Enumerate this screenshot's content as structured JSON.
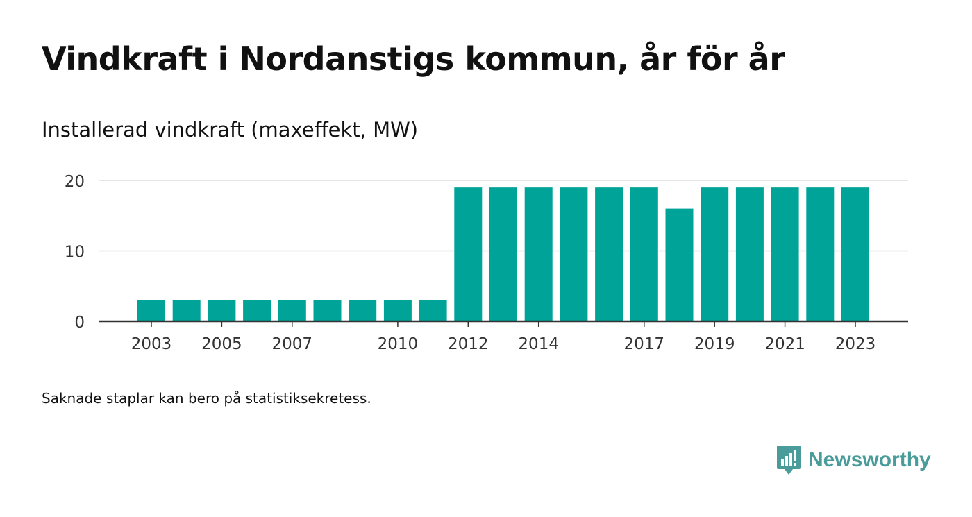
{
  "title": "Vindkraft i Nordanstigs kommun, år för år",
  "subtitle": "Installerad vindkraft (maxeffekt, MW)",
  "note": "Saknade staplar kan bero på statistiksekretess.",
  "brand": {
    "name": "Newsworthy",
    "icon": "newsworthy-logo-icon",
    "color": "#4a9c9a"
  },
  "colors": {
    "bar": "#00a398",
    "grid": "#dddddd",
    "axis": "#333333",
    "tick_text": "#333333"
  },
  "chart_data": {
    "type": "bar",
    "x": [
      2003,
      2004,
      2005,
      2006,
      2007,
      2008,
      2009,
      2010,
      2011,
      2012,
      2013,
      2014,
      2015,
      2016,
      2017,
      2018,
      2019,
      2020,
      2021,
      2022,
      2023
    ],
    "values": [
      3,
      3,
      3,
      3,
      3,
      3,
      3,
      3,
      3,
      19,
      19,
      19,
      19,
      19,
      19,
      16,
      19,
      19,
      19,
      19,
      19
    ],
    "x_tick_labels": [
      "2003",
      "2005",
      "2007",
      "2010",
      "2012",
      "2014",
      "2017",
      "2019",
      "2021",
      "2023"
    ],
    "y_ticks": [
      0,
      10,
      20
    ],
    "ylim": [
      0,
      20
    ],
    "xlabel": "",
    "ylabel": "",
    "grid": true,
    "legend": "none"
  }
}
